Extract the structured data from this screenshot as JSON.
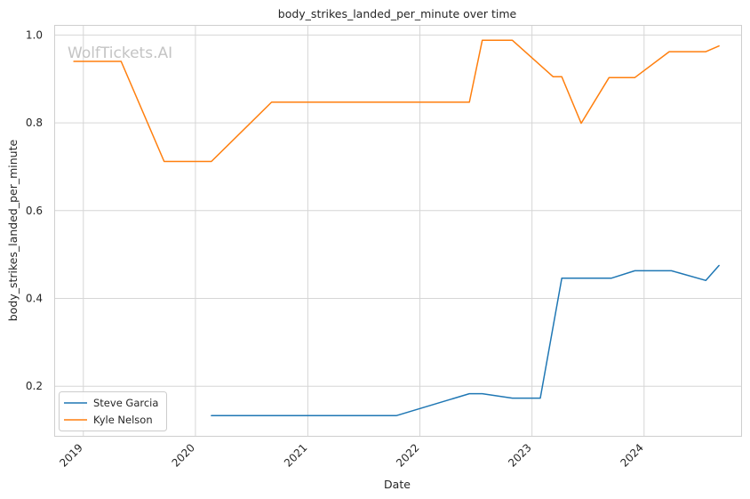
{
  "watermark": "WolfTickets.AI",
  "chart_data": {
    "type": "line",
    "title": "body_strikes_landed_per_minute over time",
    "xlabel": "Date",
    "ylabel": "body_strikes_landed_per_minute",
    "xlim": [
      "2018-10-01",
      "2024-11-12"
    ],
    "ylim": [
      0.087,
      1.021
    ],
    "x_ticks": [
      "2019",
      "2020",
      "2021",
      "2022",
      "2023",
      "2024"
    ],
    "y_ticks": [
      "0.2",
      "0.4",
      "0.6",
      "0.8",
      "1.0"
    ],
    "grid": true,
    "legend_position": "lower-left",
    "series": [
      {
        "name": "Steve Garcia",
        "color": "#1f77b4",
        "x": [
          "2020-02-22",
          "2021-10-16",
          "2022-06-11",
          "2022-07-23",
          "2022-10-29",
          "2023-01-28",
          "2023-04-08",
          "2023-09-16",
          "2023-12-02",
          "2024-03-30",
          "2024-07-20",
          "2024-09-01"
        ],
        "y": [
          0.133,
          0.133,
          0.183,
          0.183,
          0.173,
          0.173,
          0.446,
          0.446,
          0.463,
          0.463,
          0.441,
          0.475
        ]
      },
      {
        "name": "Kyle Nelson",
        "color": "#ff7f0e",
        "x": [
          "2018-12-01",
          "2019-05-04",
          "2019-09-21",
          "2020-02-22",
          "2020-09-05",
          "2022-06-11",
          "2022-07-23",
          "2022-10-29",
          "2023-03-11",
          "2023-04-08",
          "2023-06-10",
          "2023-09-09",
          "2023-12-02",
          "2024-03-23",
          "2024-07-20",
          "2024-09-01"
        ],
        "y": [
          0.94,
          0.94,
          0.712,
          0.712,
          0.847,
          0.847,
          0.988,
          0.988,
          0.905,
          0.905,
          0.799,
          0.903,
          0.903,
          0.962,
          0.962,
          0.975
        ]
      }
    ]
  }
}
